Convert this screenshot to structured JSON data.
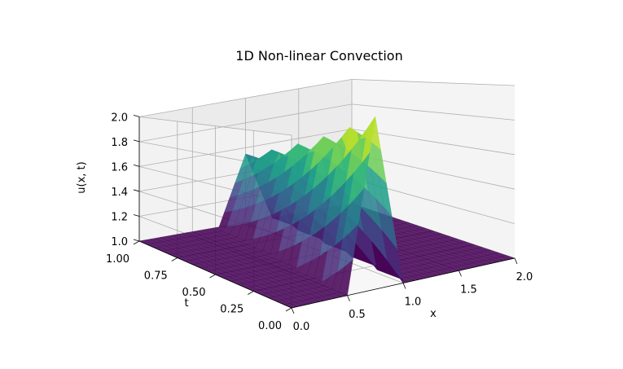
{
  "chart_data": {
    "type": "surface",
    "title": "1D Non-linear Convection",
    "xlabel": "x",
    "ylabel": "t",
    "zlabel": "u(x, t)",
    "xlim": [
      0,
      2
    ],
    "ylim": [
      0,
      1
    ],
    "zlim": [
      1,
      2
    ],
    "x_ticks": [
      "0.0",
      "0.5",
      "1.0",
      "1.5",
      "2.0"
    ],
    "y_ticks": [
      "0.00",
      "0.25",
      "0.50",
      "0.75",
      "1.00"
    ],
    "z_ticks": [
      "1.0",
      "1.2",
      "1.4",
      "1.6",
      "1.8",
      "2.0"
    ],
    "colormap": "viridis",
    "grid": true,
    "series": [
      {
        "description_x": [
          0.0,
          0.5,
          0.75,
          1.0,
          2.0
        ],
        "u_at_t0": [
          1.0,
          1.0,
          2.0,
          1.0,
          1.0
        ],
        "u_at_t1": [
          1.0,
          1.0,
          1.0,
          1.0,
          1.0
        ]
      }
    ]
  }
}
